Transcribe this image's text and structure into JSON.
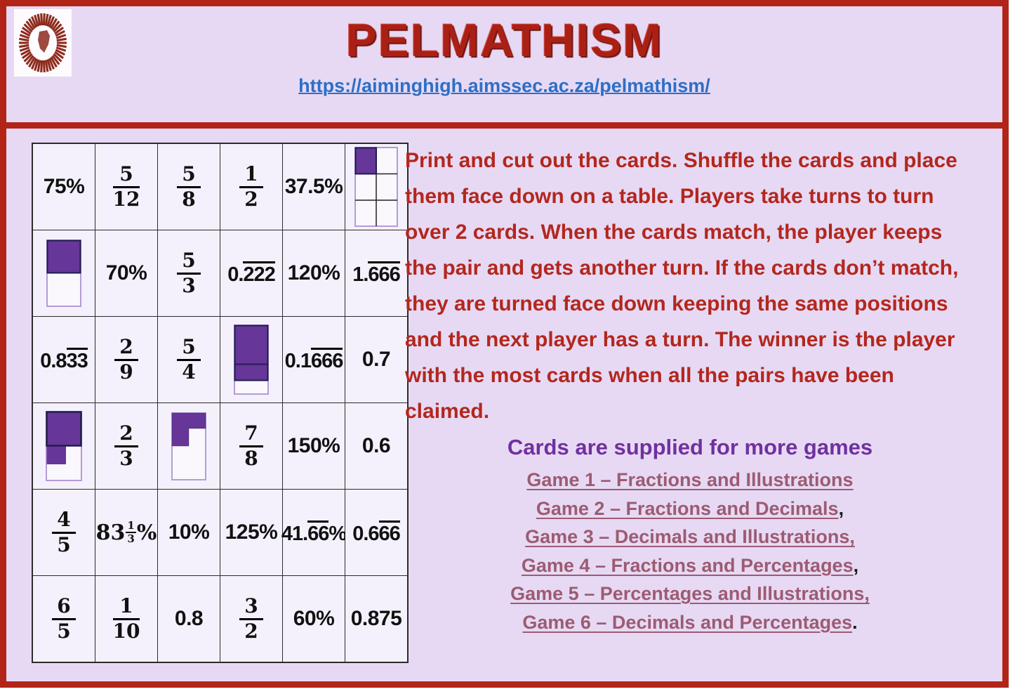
{
  "header": {
    "title": "PELMATHISM",
    "url": "https://aiminghigh.aimssec.ac.za/pelmathism/",
    "logo": "aimssec-africa-sunburst"
  },
  "instructions": "Print and cut out the cards. Shuffle the cards and place them face down on a table. Players take turns to turn over 2 cards. When the cards match, the player keeps the pair and gets another turn. If the cards don’t match, they are turned face down keeping the same positions and the next player has a turn. The winner is the player with the most cards when all the pairs have been claimed.",
  "more_games": {
    "heading": "Cards are supplied for more games",
    "links": [
      {
        "label": "Game 1 – Fractions and Illustrations",
        "suffix": ""
      },
      {
        "label": "Game 2 – Fractions and Decimals",
        "suffix": ","
      },
      {
        "label": "Game 3 – Decimals and Illustrations,",
        "suffix": ""
      },
      {
        "label": "Game 4 – Fractions and Percentages",
        "suffix": ","
      },
      {
        "label": "Game 5 – Percentages and Illustrations,",
        "suffix": ""
      },
      {
        "label": "Game 6 – Decimals and Percentages",
        "suffix": "."
      }
    ]
  },
  "card_grid": {
    "rows": [
      [
        {
          "t": "txt",
          "v": "75%"
        },
        {
          "t": "frac",
          "n": "5",
          "d": "12"
        },
        {
          "t": "frac",
          "n": "5",
          "d": "8"
        },
        {
          "t": "frac",
          "n": "1",
          "d": "2"
        },
        {
          "t": "txt",
          "v": "37.5%"
        },
        {
          "t": "illo",
          "v": "one-sixth-grid"
        }
      ],
      [
        {
          "t": "illo",
          "v": "one-half-bar"
        },
        {
          "t": "txt",
          "v": "70%"
        },
        {
          "t": "frac",
          "n": "5",
          "d": "3"
        },
        {
          "t": "dec",
          "pre": "0.",
          "ov": "222",
          "post": ""
        },
        {
          "t": "txt",
          "v": "120%"
        },
        {
          "t": "dec",
          "pre": "1.",
          "ov": "666",
          "post": ""
        }
      ],
      [
        {
          "t": "dec",
          "pre": "0.8",
          "ov": "33",
          "post": ""
        },
        {
          "t": "frac",
          "n": "2",
          "d": "9"
        },
        {
          "t": "frac",
          "n": "5",
          "d": "4"
        },
        {
          "t": "illo",
          "v": "stacked-bar"
        },
        {
          "t": "dec",
          "pre": "0.1",
          "ov": "666",
          "post": ""
        },
        {
          "t": "txt",
          "v": "0.7"
        }
      ],
      [
        {
          "t": "illo",
          "v": "five-eighths-step"
        },
        {
          "t": "frac",
          "n": "2",
          "d": "3"
        },
        {
          "t": "illo",
          "v": "three-eighths-step"
        },
        {
          "t": "frac",
          "n": "7",
          "d": "8"
        },
        {
          "t": "txt",
          "v": "150%"
        },
        {
          "t": "txt",
          "v": "0.6"
        }
      ],
      [
        {
          "t": "frac",
          "n": "4",
          "d": "5"
        },
        {
          "t": "mix",
          "w": "83",
          "n": "1",
          "d": "3",
          "post": "%"
        },
        {
          "t": "txt",
          "v": "10%"
        },
        {
          "t": "txt",
          "v": "125%"
        },
        {
          "t": "dec",
          "pre": "41.",
          "ov": "66",
          "post": "%"
        },
        {
          "t": "dec",
          "pre": "0.6",
          "ov": "66",
          "post": ""
        }
      ],
      [
        {
          "t": "frac",
          "n": "6",
          "d": "5"
        },
        {
          "t": "frac",
          "n": "1",
          "d": "10"
        },
        {
          "t": "txt",
          "v": "0.8"
        },
        {
          "t": "frac",
          "n": "3",
          "d": "2"
        },
        {
          "t": "txt",
          "v": "60%"
        },
        {
          "t": "txt",
          "v": "0.875"
        }
      ]
    ]
  },
  "colors": {
    "frame_red": "#b22418",
    "background_lavender": "#e7d9f4",
    "card_background": "#f4f1fc",
    "shade_purple": "#663699",
    "shade_dark_border": "#221c4e",
    "shade_light_border": "#b49bd8",
    "text_red": "#b3271d",
    "heading_purple": "#7030a0",
    "link_mauve": "#9c5b72",
    "url_blue": "#2d6fc6",
    "logo_red": "#8d2a1c"
  }
}
